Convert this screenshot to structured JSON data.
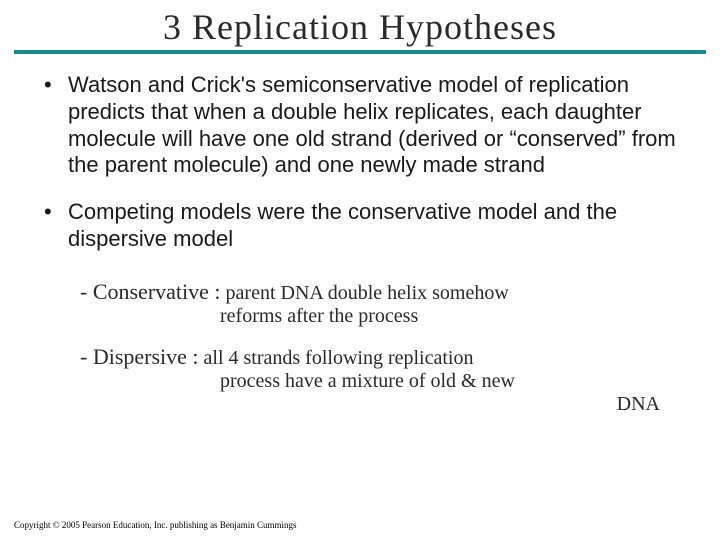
{
  "title": "3 Replication Hypotheses",
  "title_color": "#2a2a2a",
  "title_fontsize": 36,
  "underline_color": "#158b8a",
  "bullets": [
    {
      "text": "Watson and Crick's semiconservative model  of replication predicts that when a double helix replicates, each daughter molecule will have one old strand (derived or “conserved” from the parent molecule) and one newly made strand"
    },
    {
      "text": "Competing models were the conservative model and the dispersive model"
    }
  ],
  "bullet_fontsize": 22,
  "bullet_color": "#1a1a1a",
  "handwritten_notes": [
    {
      "label": "- Conservative :",
      "line1": "parent DNA double helix somehow",
      "line2": "reforms after the process"
    },
    {
      "label": "- Dispersive :",
      "line1": "all 4 strands following replication",
      "line2": "process have a mixture of old & new",
      "line3": "DNA"
    }
  ],
  "handwritten_fontsize": 20,
  "handwritten_color": "#2a2a2a",
  "copyright": "Copyright © 2005 Pearson Education, Inc. publishing as Benjamin Cummings",
  "copyright_fontsize": 9,
  "background_color": "#ffffff"
}
